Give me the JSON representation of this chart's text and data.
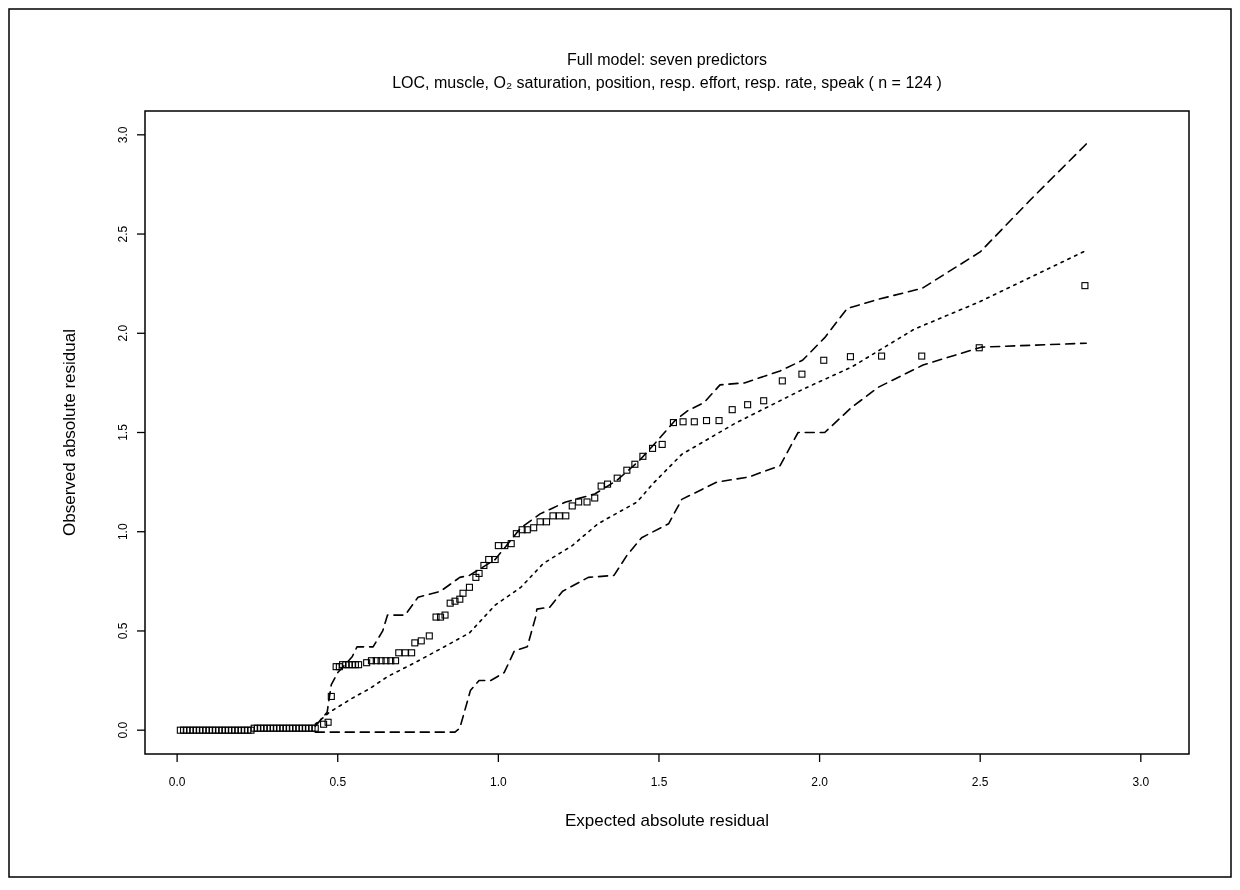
{
  "chart_data": {
    "type": "scatter",
    "title": "Full model: seven predictors",
    "subtitle": "LOC, muscle, O₂ saturation, position, resp. effort, resp. rate, speak ( n = 124 )",
    "xlabel": "Expected absolute residual",
    "ylabel": "Observed absolute residual",
    "xlim": [
      -0.1,
      3.15
    ],
    "ylim": [
      -0.12,
      3.12
    ],
    "xticks": [
      {
        "value": 0,
        "label": "0.0"
      },
      0.5,
      {
        "value": 1,
        "label": "1.0"
      },
      1.5,
      {
        "value": 2,
        "label": "2.0"
      },
      2.5,
      {
        "value": 3,
        "label": "3.0"
      }
    ],
    "yticks": [
      {
        "value": 0,
        "label": "0.0"
      },
      0.5,
      {
        "value": 1,
        "label": "1.0"
      },
      1.5,
      {
        "value": 2,
        "label": "2.0"
      },
      2.5,
      {
        "value": 3,
        "label": "3.0"
      }
    ],
    "grid": false,
    "series": [
      {
        "color": "#000000",
        "marker": "square",
        "x": [
          0.01,
          0.02,
          0.03,
          0.04,
          0.05,
          0.06,
          0.07,
          0.08,
          0.09,
          0.1,
          0.11,
          0.12,
          0.13,
          0.14,
          0.15,
          0.16,
          0.17,
          0.18,
          0.19,
          0.2,
          0.21,
          0.22,
          0.23,
          0.24,
          0.25,
          0.26,
          0.27,
          0.28,
          0.29,
          0.3,
          0.31,
          0.32,
          0.33,
          0.34,
          0.35,
          0.36,
          0.37,
          0.38,
          0.39,
          0.4,
          0.41,
          0.42,
          0.43,
          0.456,
          0.47,
          0.48,
          0.495,
          0.505,
          0.515,
          0.525,
          0.535,
          0.545,
          0.555,
          0.565,
          0.59,
          0.605,
          0.62,
          0.635,
          0.65,
          0.665,
          0.68,
          0.69,
          0.71,
          0.73,
          0.74,
          0.76,
          0.785,
          0.806,
          0.82,
          0.834,
          0.85,
          0.865,
          0.88,
          0.89,
          0.91,
          0.93,
          0.94,
          0.955,
          0.97,
          0.99,
          1.0,
          1.02,
          1.04,
          1.056,
          1.074,
          1.09,
          1.11,
          1.13,
          1.15,
          1.17,
          1.19,
          1.21,
          1.23,
          1.25,
          1.276,
          1.3,
          1.32,
          1.34,
          1.37,
          1.4,
          1.425,
          1.45,
          1.48,
          1.51,
          1.545,
          1.575,
          1.61,
          1.648,
          1.687,
          1.728,
          1.776,
          1.826,
          1.884,
          1.945,
          2.013,
          2.096,
          2.193,
          2.318,
          2.497,
          2.826
        ],
        "values": [
          0,
          0,
          0,
          0,
          0,
          0,
          0,
          0,
          0,
          0,
          0,
          0,
          0,
          0,
          0,
          0,
          0,
          0,
          0,
          0,
          0,
          0,
          0,
          0.01,
          0.01,
          0.01,
          0.01,
          0.01,
          0.01,
          0.01,
          0.01,
          0.01,
          0.01,
          0.01,
          0.01,
          0.01,
          0.01,
          0.01,
          0.01,
          0.01,
          0.01,
          0.01,
          0.01,
          0.03,
          0.04,
          0.17,
          0.32,
          0.32,
          0.33,
          0.33,
          0.33,
          0.33,
          0.33,
          0.33,
          0.34,
          0.35,
          0.35,
          0.35,
          0.35,
          0.35,
          0.35,
          0.39,
          0.39,
          0.39,
          0.44,
          0.45,
          0.475,
          0.57,
          0.57,
          0.58,
          0.64,
          0.65,
          0.66,
          0.69,
          0.72,
          0.77,
          0.79,
          0.83,
          0.86,
          0.86,
          0.93,
          0.93,
          0.94,
          0.99,
          1.01,
          1.01,
          1.02,
          1.05,
          1.05,
          1.08,
          1.08,
          1.08,
          1.13,
          1.15,
          1.15,
          1.17,
          1.23,
          1.24,
          1.27,
          1.31,
          1.34,
          1.38,
          1.42,
          1.44,
          1.55,
          1.554,
          1.554,
          1.56,
          1.56,
          1.615,
          1.64,
          1.66,
          1.76,
          1.794,
          1.864,
          1.882,
          1.885,
          1.885,
          1.927,
          2.24
        ]
      },
      {
        "type": "line",
        "color": "#000000",
        "line_style": "dashed",
        "x": [
          0.43,
          0.467,
          0.48,
          0.5,
          0.545,
          0.56,
          0.61,
          0.64,
          0.655,
          0.71,
          0.75,
          0.82,
          0.88,
          0.91,
          0.99,
          1.07,
          1.13,
          1.17,
          1.21,
          1.3,
          1.37,
          1.44,
          1.49,
          1.55,
          1.59,
          1.64,
          1.69,
          1.766,
          1.877,
          1.947,
          2.016,
          2.086,
          2.18,
          2.32,
          2.5,
          2.655,
          2.834
        ],
        "values": [
          0.02,
          0.09,
          0.23,
          0.29,
          0.37,
          0.42,
          0.42,
          0.5,
          0.58,
          0.58,
          0.67,
          0.7,
          0.77,
          0.78,
          0.86,
          1.02,
          1.09,
          1.12,
          1.15,
          1.19,
          1.26,
          1.36,
          1.45,
          1.56,
          1.61,
          1.65,
          1.74,
          1.75,
          1.81,
          1.864,
          1.978,
          2.125,
          2.17,
          2.227,
          2.41,
          2.67,
          2.96
        ]
      },
      {
        "type": "line",
        "color": "#000000",
        "line_style": "dotted",
        "x": [
          0.43,
          0.474,
          0.544,
          0.6,
          0.655,
          0.74,
          0.82,
          0.91,
          0.99,
          1.07,
          1.14,
          1.23,
          1.31,
          1.432,
          1.48,
          1.571,
          1.738,
          1.947,
          2.1,
          2.294,
          2.5,
          2.826
        ],
        "values": [
          0.03,
          0.09,
          0.16,
          0.21,
          0.27,
          0.34,
          0.41,
          0.49,
          0.63,
          0.72,
          0.84,
          0.93,
          1.04,
          1.15,
          1.24,
          1.39,
          1.547,
          1.717,
          1.83,
          2.02,
          2.16,
          2.414
        ]
      },
      {
        "type": "line",
        "color": "#000000",
        "line_style": "dashed",
        "x": [
          0.43,
          0.865,
          0.88,
          0.913,
          0.94,
          0.976,
          1.018,
          1.05,
          1.09,
          1.116,
          1.12,
          1.16,
          1.2,
          1.28,
          1.36,
          1.4,
          1.446,
          1.53,
          1.571,
          1.68,
          1.78,
          1.877,
          1.933,
          2.016,
          2.1,
          2.183,
          2.322,
          2.503,
          2.83
        ],
        "values": [
          -0.01,
          -0.01,
          0.01,
          0.2,
          0.25,
          0.25,
          0.29,
          0.4,
          0.42,
          0.57,
          0.61,
          0.62,
          0.7,
          0.77,
          0.78,
          0.88,
          0.97,
          1.04,
          1.163,
          1.25,
          1.276,
          1.333,
          1.5,
          1.5,
          1.627,
          1.728,
          1.84,
          1.93,
          1.95
        ]
      }
    ]
  }
}
